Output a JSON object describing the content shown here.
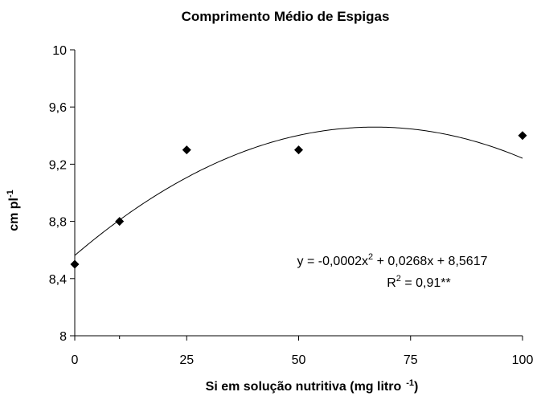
{
  "chart_data": {
    "type": "scatter",
    "title": "Comprimento Médio de Espigas",
    "xlabel": "Si em solução nutritiva (mg litro",
    "xlabel_sup": "-1",
    "xlabel_end": ")",
    "ylabel": "cm pl",
    "ylabel_sup": "-1",
    "xlim": [
      0,
      100
    ],
    "ylim": [
      8,
      10
    ],
    "x_ticks": [
      0,
      25,
      50,
      75,
      100
    ],
    "x_tick_labels": [
      "0",
      "25",
      "50",
      "75",
      "100"
    ],
    "x_minor_ticks": [
      10
    ],
    "y_ticks": [
      8,
      8.4,
      8.8,
      9.2,
      9.6,
      10
    ],
    "y_tick_labels": [
      "8",
      "8,4",
      "8,8",
      "9,2",
      "9,6",
      "10"
    ],
    "points": [
      {
        "x": 0,
        "y": 8.5
      },
      {
        "x": 10,
        "y": 8.8
      },
      {
        "x": 25,
        "y": 9.3
      },
      {
        "x": 50,
        "y": 9.3
      },
      {
        "x": 100,
        "y": 9.4
      }
    ],
    "trendline": {
      "a": -0.0002,
      "b": 0.0268,
      "c": 8.5617
    },
    "equation": {
      "line1_a": "y = -0,0002x",
      "line1_sup": "2",
      "line1_b": " + 0,0268x + 8,5617",
      "line2_a": "R",
      "line2_sup": "2",
      "line2_b": " = 0,91**"
    },
    "grid": false,
    "marker": "diamond"
  }
}
